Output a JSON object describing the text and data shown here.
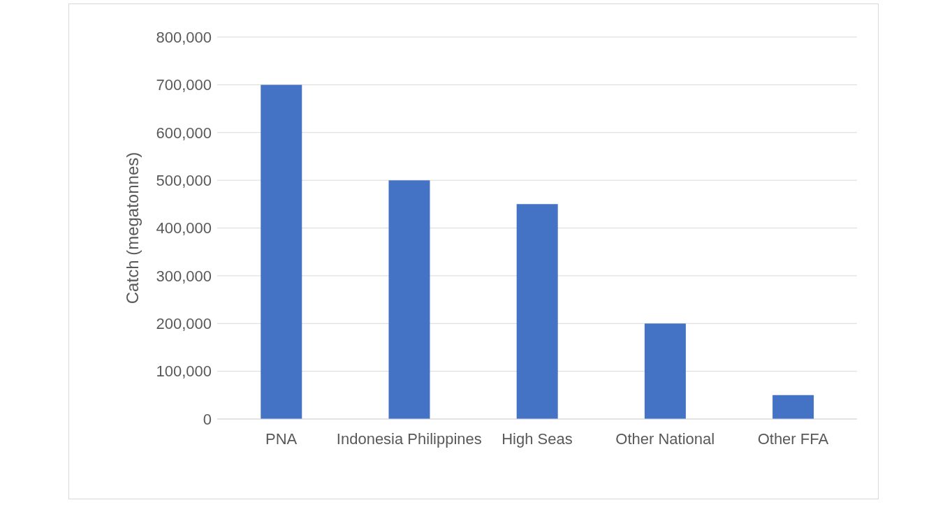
{
  "chart_data": {
    "type": "bar",
    "ylabel": "Catch (megatonnes)",
    "categories": [
      "PNA",
      "Indonesia Philippines",
      "High Seas",
      "Other National",
      "Other FFA"
    ],
    "values": [
      700000,
      500000,
      450000,
      200000,
      50000
    ],
    "color": "#4472c4",
    "ylim": [
      0,
      800000
    ],
    "yticks": [
      {
        "value": 0,
        "label": "0"
      },
      {
        "value": 100000,
        "label": "100,000"
      },
      {
        "value": 200000,
        "label": "200,000"
      },
      {
        "value": 300000,
        "label": "300,000"
      },
      {
        "value": 400000,
        "label": "400,000"
      },
      {
        "value": 500000,
        "label": "500,000"
      },
      {
        "value": 600000,
        "label": "600,000"
      },
      {
        "value": 700000,
        "label": "700,000"
      },
      {
        "value": 800000,
        "label": "800,000"
      }
    ],
    "grid": "y",
    "legend": false
  }
}
